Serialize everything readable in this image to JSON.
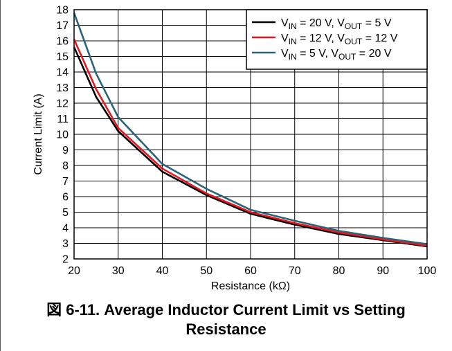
{
  "chart_data": {
    "type": "line",
    "xlabel": "Resistance (kΩ)",
    "ylabel": "Current Limit (A)",
    "xlim": [
      20,
      100
    ],
    "ylim": [
      2,
      18
    ],
    "x_ticks": [
      20,
      30,
      40,
      50,
      60,
      70,
      80,
      90,
      100
    ],
    "y_ticks": [
      2,
      3,
      4,
      5,
      6,
      7,
      8,
      9,
      10,
      11,
      12,
      13,
      14,
      15,
      16,
      17,
      18
    ],
    "grid": true,
    "legend_position": "top-right",
    "series": [
      {
        "name": "V_IN = 20 V, V_OUT = 5 V",
        "legend": {
          "parts": [
            [
              "V",
              ""
            ],
            [
              "IN",
              "sub"
            ],
            [
              " = 20 V, V",
              ""
            ],
            [
              "OUT",
              "sub"
            ],
            [
              " = 5 V",
              ""
            ]
          ]
        },
        "color": "#000000",
        "x": [
          20,
          25,
          30,
          40,
          50,
          60,
          70,
          80,
          90,
          100
        ],
        "y": [
          15.6,
          12.4,
          10.2,
          7.6,
          6.1,
          4.9,
          4.2,
          3.6,
          3.2,
          2.8
        ]
      },
      {
        "name": "V_IN = 12 V, V_OUT = 12 V",
        "legend": {
          "parts": [
            [
              "V",
              ""
            ],
            [
              "IN",
              "sub"
            ],
            [
              " = 12 V, V",
              ""
            ],
            [
              "OUT",
              "sub"
            ],
            [
              " = 12 V",
              ""
            ]
          ]
        },
        "color": "#e8161e",
        "x": [
          20,
          25,
          30,
          40,
          50,
          60,
          70,
          80,
          90,
          100
        ],
        "y": [
          16.1,
          12.9,
          10.4,
          7.8,
          6.2,
          5.0,
          4.3,
          3.7,
          3.25,
          2.85
        ]
      },
      {
        "name": "V_IN = 5 V, V_OUT = 20 V",
        "legend": {
          "parts": [
            [
              "V",
              ""
            ],
            [
              "IN",
              "sub"
            ],
            [
              " = 5 V, V",
              ""
            ],
            [
              "OUT",
              "sub"
            ],
            [
              " = 20 V",
              ""
            ]
          ]
        },
        "color": "#2a6478",
        "x": [
          20,
          25,
          30,
          40,
          50,
          60,
          70,
          80,
          90,
          100
        ],
        "y": [
          17.8,
          13.9,
          11.1,
          8.1,
          6.5,
          5.15,
          4.45,
          3.8,
          3.35,
          2.95
        ]
      }
    ]
  },
  "caption": {
    "line1": "図 6-11. Average Inductor Current Limit vs Setting",
    "line2": "Resistance"
  }
}
